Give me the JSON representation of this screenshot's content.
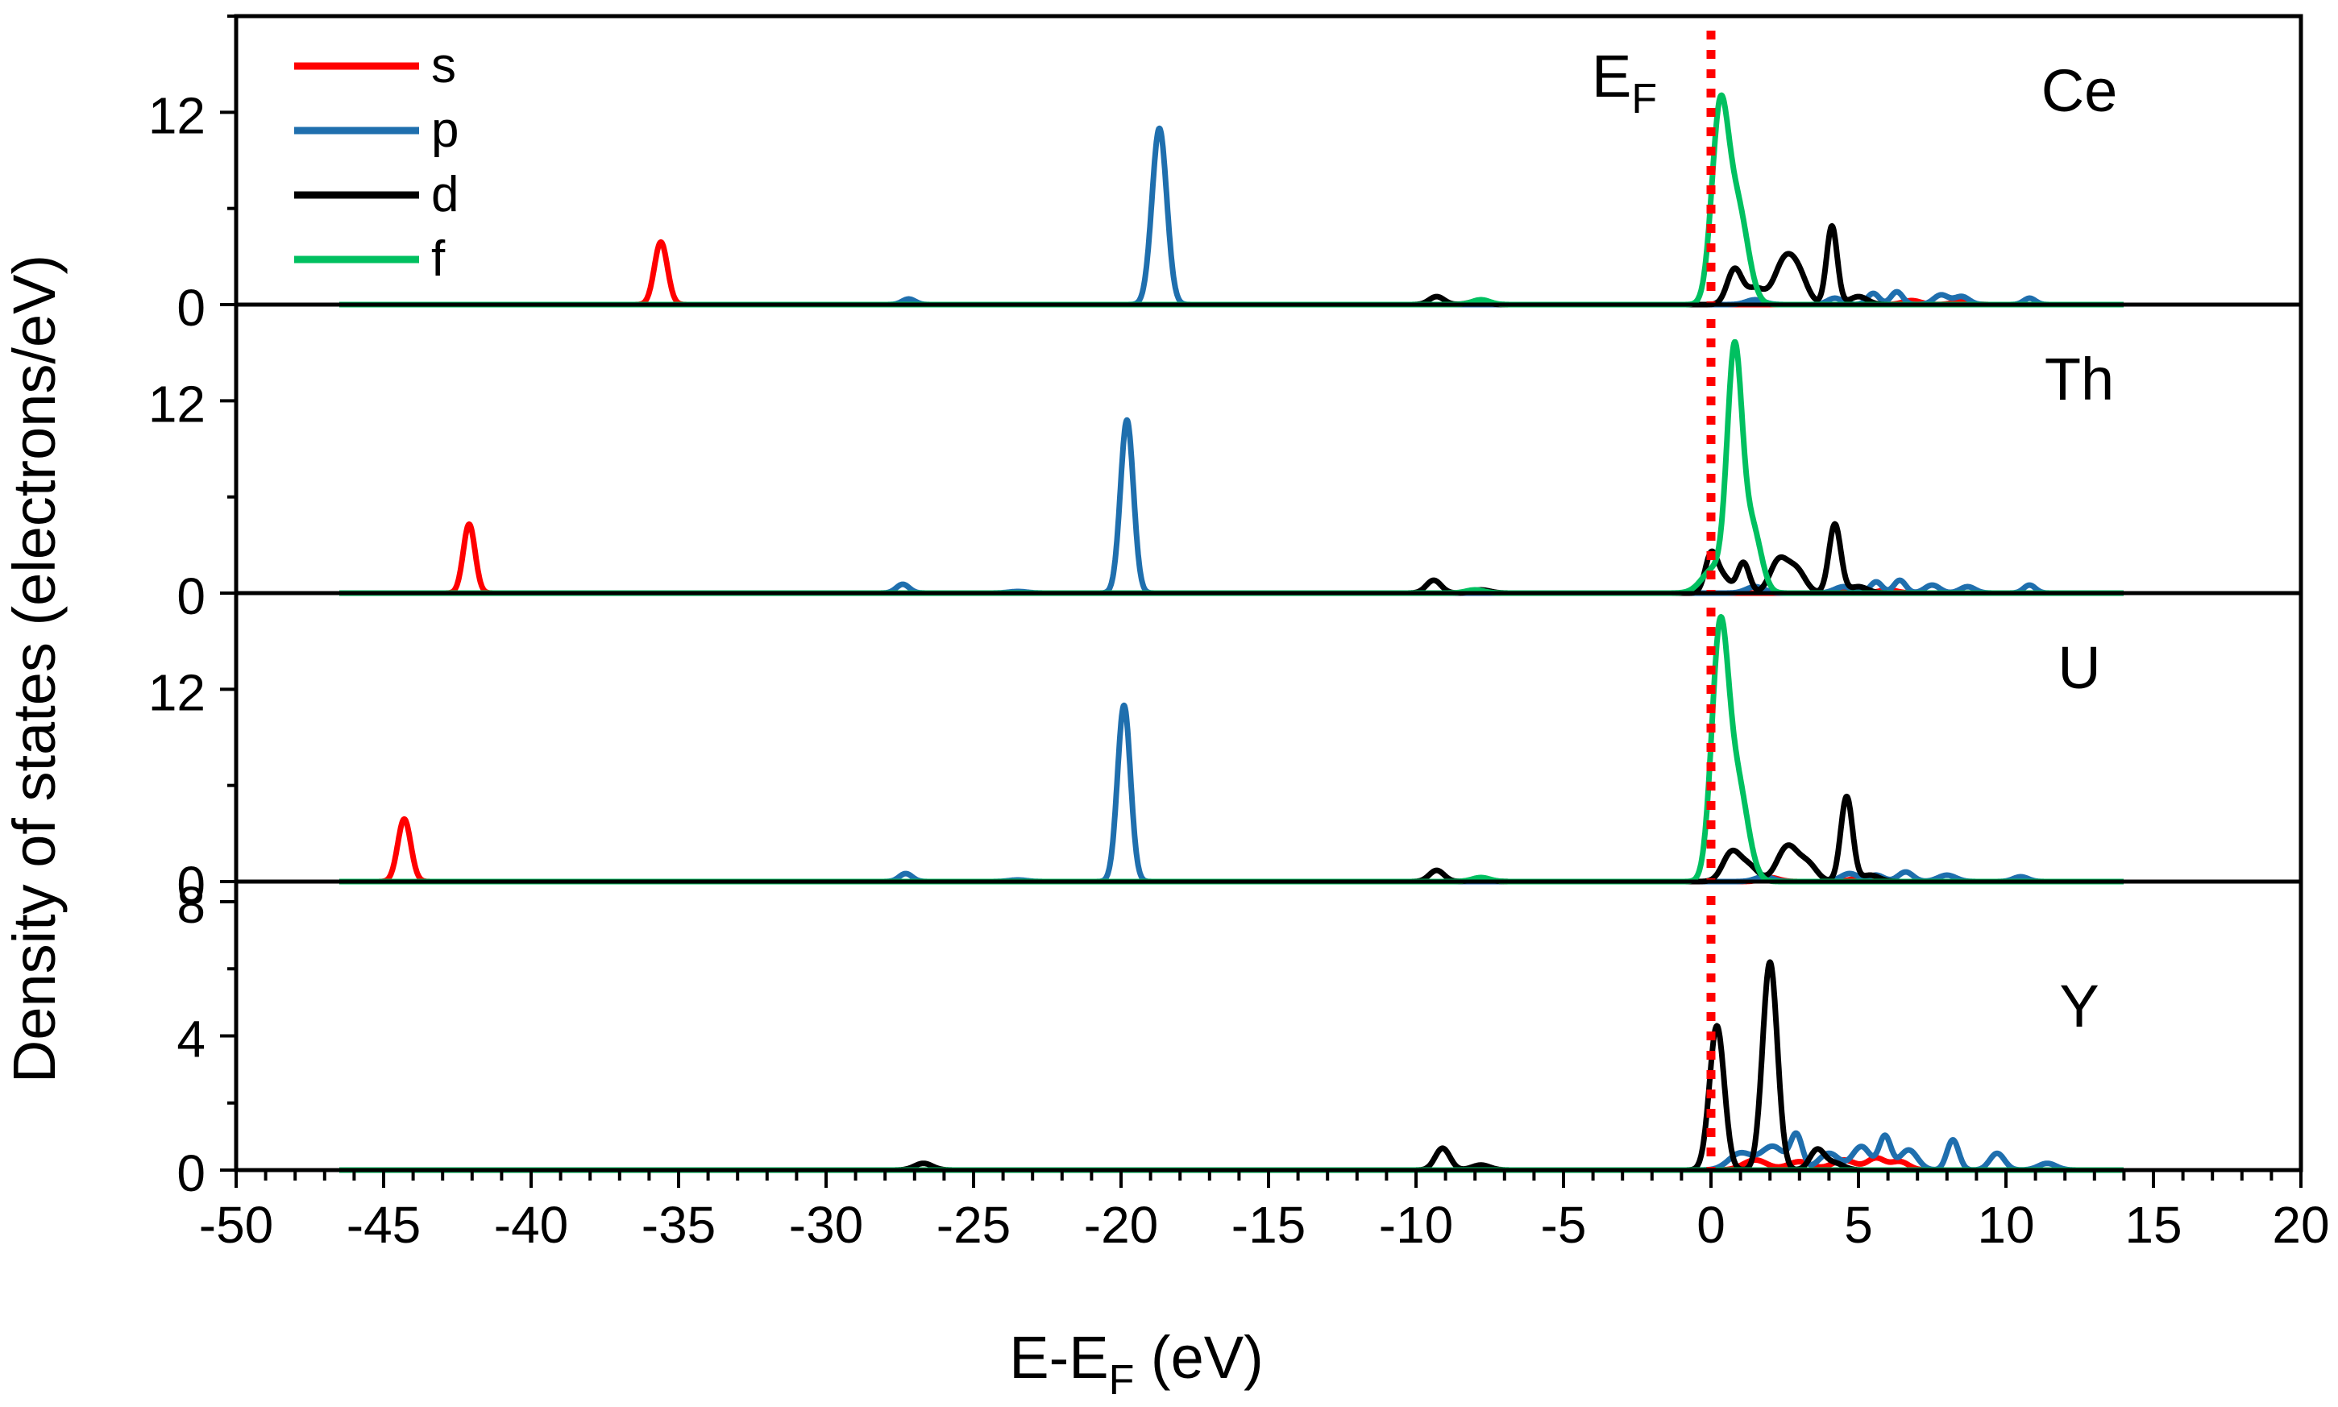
{
  "chart_data": {
    "type": "line",
    "xlabel": "E-E",
    "xlabel_sub": "F",
    "xlabel_unit": " (eV)",
    "ylabel": "Density of states (electrons/eV)",
    "xlim": [
      -50,
      20
    ],
    "x_ticks": [
      -50,
      -45,
      -40,
      -35,
      -30,
      -25,
      -20,
      -15,
      -10,
      -5,
      0,
      5,
      10,
      15,
      20
    ],
    "fermi_label": "E",
    "fermi_label_sub": "F",
    "fermi_energy": 0,
    "legend": {
      "placement": "top-left",
      "entries": [
        {
          "name": "s",
          "color": "#ff0000"
        },
        {
          "name": "p",
          "color": "#1f6fae"
        },
        {
          "name": "d",
          "color": "#000000"
        },
        {
          "name": "f",
          "color": "#00c060"
        }
      ]
    },
    "colors": {
      "s": "#ff0000",
      "p": "#1f6fae",
      "d": "#000000",
      "f": "#00c060",
      "fermi": "#ff0000"
    },
    "panels": [
      {
        "label": "Ce",
        "ylim": [
          0,
          18
        ],
        "y_ticks": [
          0,
          12
        ],
        "peaks": {
          "s": [
            [
              -35.6,
              3.9,
              0.22
            ],
            [
              6.8,
              0.25,
              0.3
            ],
            [
              8.5,
              0.2,
              0.3
            ]
          ],
          "p": [
            [
              -27.2,
              0.35,
              0.22
            ],
            [
              -18.7,
              11.0,
              0.25
            ],
            [
              1.5,
              0.3,
              0.3
            ],
            [
              4.2,
              0.4,
              0.25
            ],
            [
              5.5,
              0.7,
              0.2
            ],
            [
              6.3,
              0.8,
              0.2
            ],
            [
              7.8,
              0.6,
              0.25
            ],
            [
              8.5,
              0.5,
              0.25
            ],
            [
              10.8,
              0.4,
              0.2
            ]
          ],
          "d": [
            [
              -9.3,
              0.5,
              0.25
            ],
            [
              -7.9,
              0.2,
              0.3
            ],
            [
              0.8,
              2.2,
              0.25
            ],
            [
              1.5,
              1.0,
              0.3
            ],
            [
              2.5,
              2.7,
              0.35
            ],
            [
              3.0,
              1.4,
              0.3
            ],
            [
              4.1,
              4.9,
              0.18
            ],
            [
              5.0,
              0.5,
              0.3
            ]
          ],
          "f": [
            [
              -7.8,
              0.3,
              0.3
            ],
            [
              0.3,
              11.5,
              0.28
            ],
            [
              0.9,
              6.0,
              0.35
            ]
          ]
        }
      },
      {
        "label": "Th",
        "ylim": [
          0,
          18
        ],
        "y_ticks": [
          0,
          12
        ],
        "peaks": {
          "s": [
            [
              -42.1,
              4.3,
              0.2
            ],
            [
              4.5,
              0.2,
              0.3
            ],
            [
              6.0,
              0.2,
              0.3
            ]
          ],
          "p": [
            [
              -27.4,
              0.55,
              0.22
            ],
            [
              -23.5,
              0.1,
              0.3
            ],
            [
              -19.8,
              10.8,
              0.22
            ],
            [
              1.5,
              0.4,
              0.3
            ],
            [
              4.5,
              0.4,
              0.3
            ],
            [
              5.6,
              0.7,
              0.2
            ],
            [
              6.4,
              0.8,
              0.2
            ],
            [
              7.5,
              0.5,
              0.25
            ],
            [
              8.7,
              0.4,
              0.25
            ],
            [
              10.8,
              0.5,
              0.2
            ]
          ],
          "d": [
            [
              -9.4,
              0.8,
              0.25
            ],
            [
              -7.8,
              0.2,
              0.3
            ],
            [
              0.0,
              2.3,
              0.2
            ],
            [
              0.4,
              1.0,
              0.25
            ],
            [
              1.1,
              1.9,
              0.2
            ],
            [
              2.3,
              2.0,
              0.3
            ],
            [
              2.9,
              1.4,
              0.3
            ],
            [
              4.2,
              4.3,
              0.2
            ],
            [
              5.0,
              0.4,
              0.3
            ]
          ],
          "f": [
            [
              -8.0,
              0.2,
              0.3
            ],
            [
              0.1,
              1.5,
              0.4
            ],
            [
              0.8,
              14.8,
              0.25
            ],
            [
              1.4,
              4.0,
              0.3
            ]
          ]
        }
      },
      {
        "label": "U",
        "ylim": [
          0,
          18
        ],
        "y_ticks": [
          0,
          12
        ],
        "peaks": {
          "s": [
            [
              -44.3,
              3.9,
              0.22
            ],
            [
              2.0,
              0.25,
              0.3
            ],
            [
              5.0,
              0.2,
              0.3
            ]
          ],
          "p": [
            [
              -27.3,
              0.5,
              0.22
            ],
            [
              -23.5,
              0.1,
              0.3
            ],
            [
              -19.9,
              11.0,
              0.22
            ],
            [
              1.8,
              0.3,
              0.3
            ],
            [
              4.7,
              0.5,
              0.3
            ],
            [
              5.6,
              0.4,
              0.25
            ],
            [
              6.6,
              0.6,
              0.25
            ],
            [
              8.0,
              0.4,
              0.3
            ],
            [
              10.5,
              0.3,
              0.25
            ]
          ],
          "d": [
            [
              -9.3,
              0.7,
              0.25
            ],
            [
              -7.8,
              0.2,
              0.3
            ],
            [
              0.7,
              1.8,
              0.3
            ],
            [
              1.3,
              0.9,
              0.3
            ],
            [
              2.6,
              2.2,
              0.35
            ],
            [
              3.3,
              1.0,
              0.3
            ],
            [
              4.6,
              5.3,
              0.2
            ],
            [
              5.4,
              0.4,
              0.3
            ]
          ],
          "f": [
            [
              -7.8,
              0.25,
              0.3
            ],
            [
              0.3,
              15.0,
              0.28
            ],
            [
              0.9,
              6.0,
              0.35
            ]
          ]
        }
      },
      {
        "label": "Y",
        "ylim": [
          0,
          8.6
        ],
        "y_ticks": [
          0,
          4,
          8
        ],
        "peaks": {
          "s": [
            [
              1.5,
              0.3,
              0.4
            ],
            [
              3.0,
              0.25,
              0.4
            ],
            [
              4.5,
              0.3,
              0.4
            ],
            [
              5.6,
              0.35,
              0.3
            ],
            [
              6.4,
              0.25,
              0.3
            ]
          ],
          "p": [
            [
              1.0,
              0.5,
              0.4
            ],
            [
              2.1,
              0.7,
              0.4
            ],
            [
              2.9,
              1.0,
              0.2
            ],
            [
              4.0,
              0.5,
              0.35
            ],
            [
              5.1,
              0.7,
              0.3
            ],
            [
              5.9,
              1.0,
              0.2
            ],
            [
              6.7,
              0.6,
              0.3
            ],
            [
              8.2,
              0.9,
              0.2
            ],
            [
              9.7,
              0.5,
              0.25
            ],
            [
              11.4,
              0.2,
              0.3
            ]
          ],
          "d": [
            [
              -26.7,
              0.2,
              0.3
            ],
            [
              -9.1,
              0.65,
              0.25
            ],
            [
              -7.8,
              0.15,
              0.3
            ],
            [
              0.2,
              4.3,
              0.25
            ],
            [
              2.0,
              6.2,
              0.25
            ],
            [
              3.6,
              0.6,
              0.25
            ],
            [
              4.2,
              0.2,
              0.3
            ]
          ],
          "f": []
        }
      }
    ]
  }
}
